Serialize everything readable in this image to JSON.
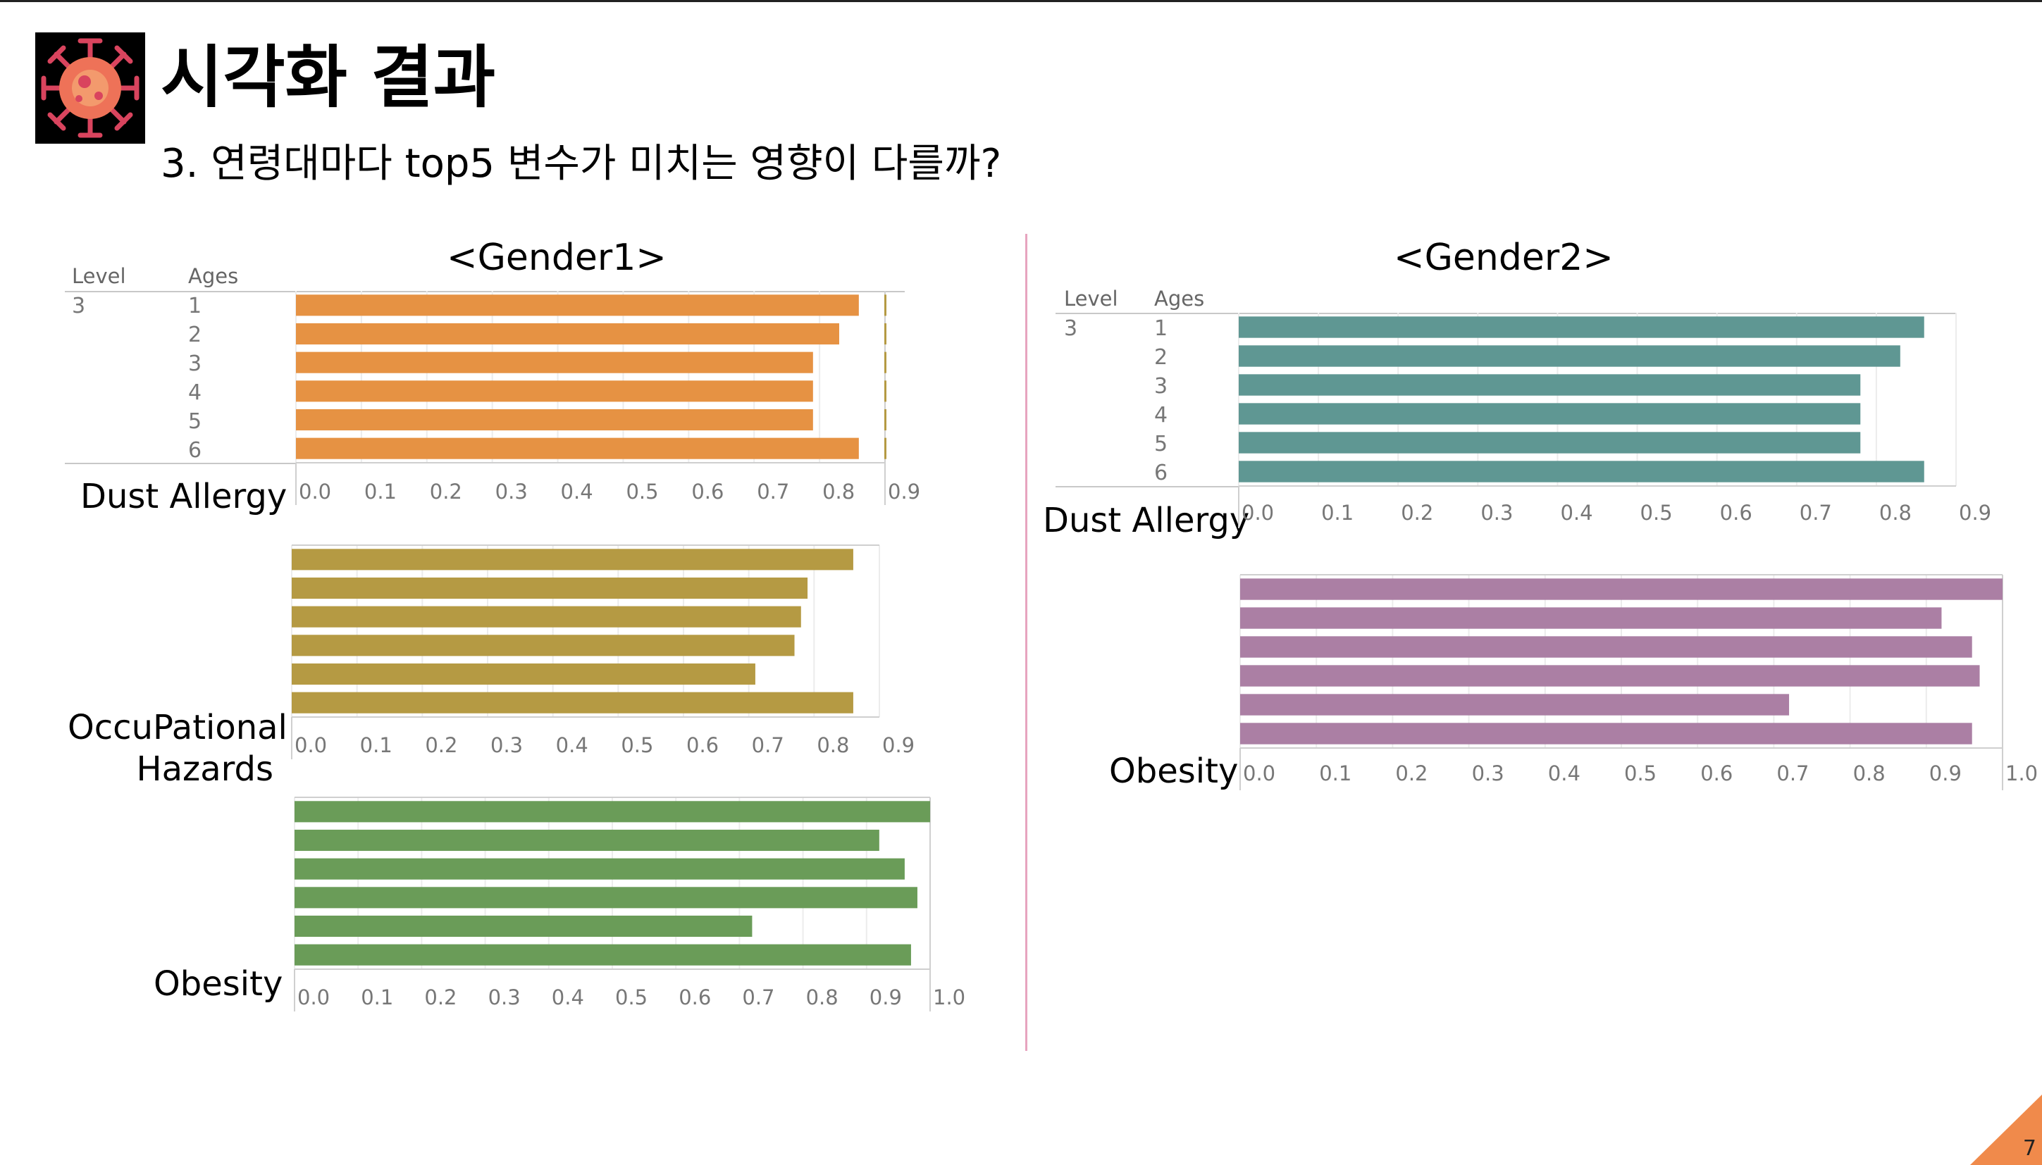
{
  "slide": {
    "title": "시각화 결과",
    "subtitle": "3. 연령대마다 top5 변수가 미치는 영향이 다를까?",
    "page_number": "7",
    "logo_icon": "virus-icon"
  },
  "panels": {
    "gender1": {
      "title": "<Gender1>",
      "header_level": "Level",
      "header_ages": "Ages",
      "level_value": "3",
      "ages": [
        "1",
        "2",
        "3",
        "4",
        "5",
        "6"
      ]
    },
    "gender2": {
      "title": "<Gender2>",
      "header_level": "Level",
      "header_ages": "Ages",
      "level_value": "3",
      "ages": [
        "1",
        "2",
        "3",
        "4",
        "5",
        "6"
      ]
    }
  },
  "chart_data": [
    {
      "type": "bar",
      "panel": "<Gender1>",
      "ylabel": "Dust Allergy",
      "categories": [
        "1",
        "2",
        "3",
        "4",
        "5",
        "6"
      ],
      "values": [
        0.86,
        0.83,
        0.79,
        0.79,
        0.79,
        0.86
      ],
      "ticks": [
        "0.0",
        "0.1",
        "0.2",
        "0.3",
        "0.4",
        "0.5",
        "0.6",
        "0.7",
        "0.8",
        "0.9"
      ],
      "xlim": [
        0,
        0.9
      ],
      "color": "#e69243"
    },
    {
      "type": "bar",
      "panel": "<Gender1>",
      "ylabel": "OccuPational Hazards",
      "categories": [
        "1",
        "2",
        "3",
        "4",
        "5",
        "6"
      ],
      "values": [
        0.86,
        0.79,
        0.78,
        0.77,
        0.71,
        0.86
      ],
      "ticks": [
        "0.0",
        "0.1",
        "0.2",
        "0.3",
        "0.4",
        "0.5",
        "0.6",
        "0.7",
        "0.8",
        "0.9"
      ],
      "xlim": [
        0,
        0.9
      ],
      "color": "#b59a43"
    },
    {
      "type": "bar",
      "panel": "<Gender1>",
      "ylabel": "Obesity",
      "categories": [
        "1",
        "2",
        "3",
        "4",
        "5",
        "6"
      ],
      "values": [
        1.0,
        0.92,
        0.96,
        0.98,
        0.72,
        0.97
      ],
      "ticks": [
        "0.0",
        "0.1",
        "0.2",
        "0.3",
        "0.4",
        "0.5",
        "0.6",
        "0.7",
        "0.8",
        "0.9",
        "1.0"
      ],
      "xlim": [
        0,
        1.0
      ],
      "color": "#6a9c58"
    },
    {
      "type": "bar",
      "panel": "<Gender2>",
      "ylabel": "Dust Allergy",
      "categories": [
        "1",
        "2",
        "3",
        "4",
        "5",
        "6"
      ],
      "values": [
        0.86,
        0.83,
        0.78,
        0.78,
        0.78,
        0.86
      ],
      "ticks": [
        "0.0",
        "0.1",
        "0.2",
        "0.3",
        "0.4",
        "0.5",
        "0.6",
        "0.7",
        "0.8",
        "0.9"
      ],
      "xlim": [
        0,
        0.9
      ],
      "color": "#5f9793"
    },
    {
      "type": "bar",
      "panel": "<Gender2>",
      "ylabel": "Obesity",
      "categories": [
        "1",
        "2",
        "3",
        "4",
        "5",
        "6"
      ],
      "values": [
        1.0,
        0.92,
        0.96,
        0.97,
        0.72,
        0.96
      ],
      "ticks": [
        "0.0",
        "0.1",
        "0.2",
        "0.3",
        "0.4",
        "0.5",
        "0.6",
        "0.7",
        "0.8",
        "0.9",
        "1.0"
      ],
      "xlim": [
        0,
        1.0
      ],
      "color": "#ab7fa4"
    }
  ]
}
